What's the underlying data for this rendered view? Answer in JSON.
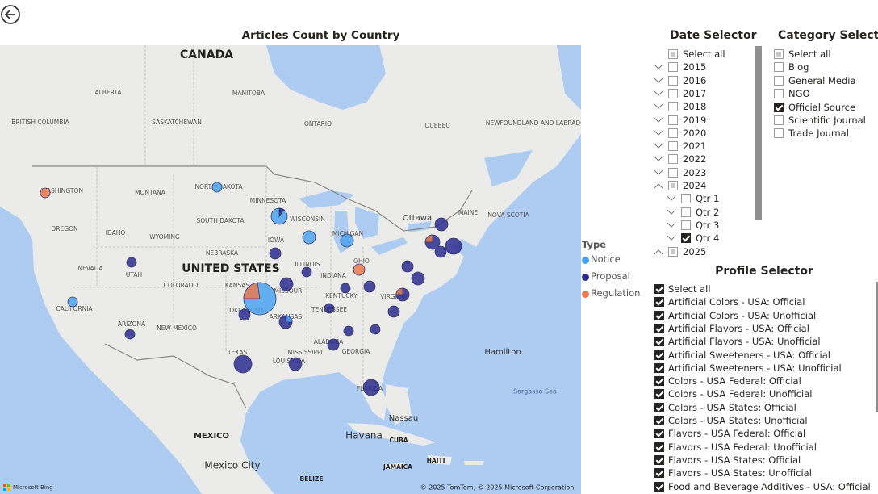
{
  "map": {
    "title": "Articles Count by Country",
    "labels": [
      "CANADA",
      "UNITED STATES",
      "MEXICO",
      "Mexico City",
      "ALBERTA",
      "MANITOBA",
      "SASKATCHEWAN",
      "ONTARIO",
      "QUEBEC",
      "BRITISH COLUMBIA",
      "NEWFOUNDLAND AND LABRADOR",
      "WASHINGTON",
      "MONTANA",
      "NORTH DAKOTA",
      "MINNESOTA",
      "OREGON",
      "IDAHO",
      "WYOMING",
      "SOUTH DAKOTA",
      "WISCONSIN",
      "MICHIGAN",
      "NEVADA",
      "UTAH",
      "COLORADO",
      "NEBRASKA",
      "IOWA",
      "ILLINOIS",
      "INDIANA",
      "OHIO",
      "KANSAS",
      "MISSOURI",
      "CALIFORNIA",
      "ARIZONA",
      "NEW MEXICO",
      "OKLAHOMA",
      "ARKANSAS",
      "TENNESSEE",
      "KENTUCKY",
      "TEXAS",
      "LOUISIANA",
      "MISSISSIPPI",
      "ALABAMA",
      "GEORGIA",
      "FLORIDA",
      "VIRGINIA",
      "Ottawa",
      "MAINE",
      "NOVA SCOTIA",
      "Havana",
      "CUBA",
      "Nassau",
      "JAMAICA",
      "HAITI",
      "Hamilton",
      "Sargasso Sea",
      "BELIZE"
    ],
    "logo": "Microsoft Bing",
    "attribution": "© 2025 TomTom, © 2025 Microsoft Corporation"
  },
  "legend": {
    "title": "Type",
    "items": [
      {
        "label": "Notice",
        "color": "#4aa3f0"
      },
      {
        "label": "Proposal",
        "color": "#2b2c8f"
      },
      {
        "label": "Regulation",
        "color": "#ea7a4f"
      }
    ]
  },
  "date_selector": {
    "title": "Date Selector",
    "items": [
      {
        "label": "Select all",
        "level": 0,
        "state": "partial"
      },
      {
        "label": "2015",
        "level": 0,
        "state": "none"
      },
      {
        "label": "2016",
        "level": 0,
        "state": "none"
      },
      {
        "label": "2017",
        "level": 0,
        "state": "none"
      },
      {
        "label": "2018",
        "level": 0,
        "state": "none"
      },
      {
        "label": "2019",
        "level": 0,
        "state": "none"
      },
      {
        "label": "2020",
        "level": 0,
        "state": "none"
      },
      {
        "label": "2021",
        "level": 0,
        "state": "none"
      },
      {
        "label": "2022",
        "level": 0,
        "state": "none"
      },
      {
        "label": "2023",
        "level": 0,
        "state": "none"
      },
      {
        "label": "2024",
        "level": 0,
        "state": "partial"
      },
      {
        "label": "Qtr 1",
        "level": 1,
        "state": "none"
      },
      {
        "label": "Qtr 2",
        "level": 1,
        "state": "none"
      },
      {
        "label": "Qtr 3",
        "level": 1,
        "state": "none"
      },
      {
        "label": "Qtr 4",
        "level": 1,
        "state": "checked"
      },
      {
        "label": "2025",
        "level": 0,
        "state": "partial"
      }
    ]
  },
  "category_selector": {
    "title": "Category Selector",
    "items": [
      {
        "label": "Select all",
        "state": "partial"
      },
      {
        "label": "Blog",
        "state": "none"
      },
      {
        "label": "General Media",
        "state": "none"
      },
      {
        "label": "NGO",
        "state": "none"
      },
      {
        "label": "Official Source",
        "state": "checked"
      },
      {
        "label": "Scientific Journal",
        "state": "none"
      },
      {
        "label": "Trade Journal",
        "state": "none"
      }
    ]
  },
  "profile_selector": {
    "title": "Profile Selector",
    "items": [
      {
        "label": "Select all",
        "state": "checked"
      },
      {
        "label": "Artificial Colors - USA: Official",
        "state": "checked"
      },
      {
        "label": "Artificial Colors - USA: Unofficial",
        "state": "checked"
      },
      {
        "label": "Artificial Flavors - USA: Official",
        "state": "checked"
      },
      {
        "label": "Artificial Flavors - USA: Unofficial",
        "state": "checked"
      },
      {
        "label": "Artificial Sweeteners - USA: Official",
        "state": "checked"
      },
      {
        "label": "Artificial Sweeteners - USA: Unofficial",
        "state": "checked"
      },
      {
        "label": "Colors - USA Federal: Official",
        "state": "checked"
      },
      {
        "label": "Colors - USA Federal: Unofficial",
        "state": "checked"
      },
      {
        "label": "Colors - USA States: Official",
        "state": "checked"
      },
      {
        "label": "Colors - USA States: Unofficial",
        "state": "checked"
      },
      {
        "label": "Flavors - USA Federal: Official",
        "state": "checked"
      },
      {
        "label": "Flavors - USA Federal: Unofficial",
        "state": "checked"
      },
      {
        "label": "Flavors - USA States: Official",
        "state": "checked"
      },
      {
        "label": "Flavors - USA States: Unofficial",
        "state": "checked"
      },
      {
        "label": "Food and Beverage Additives - USA: Official",
        "state": "checked"
      }
    ]
  }
}
